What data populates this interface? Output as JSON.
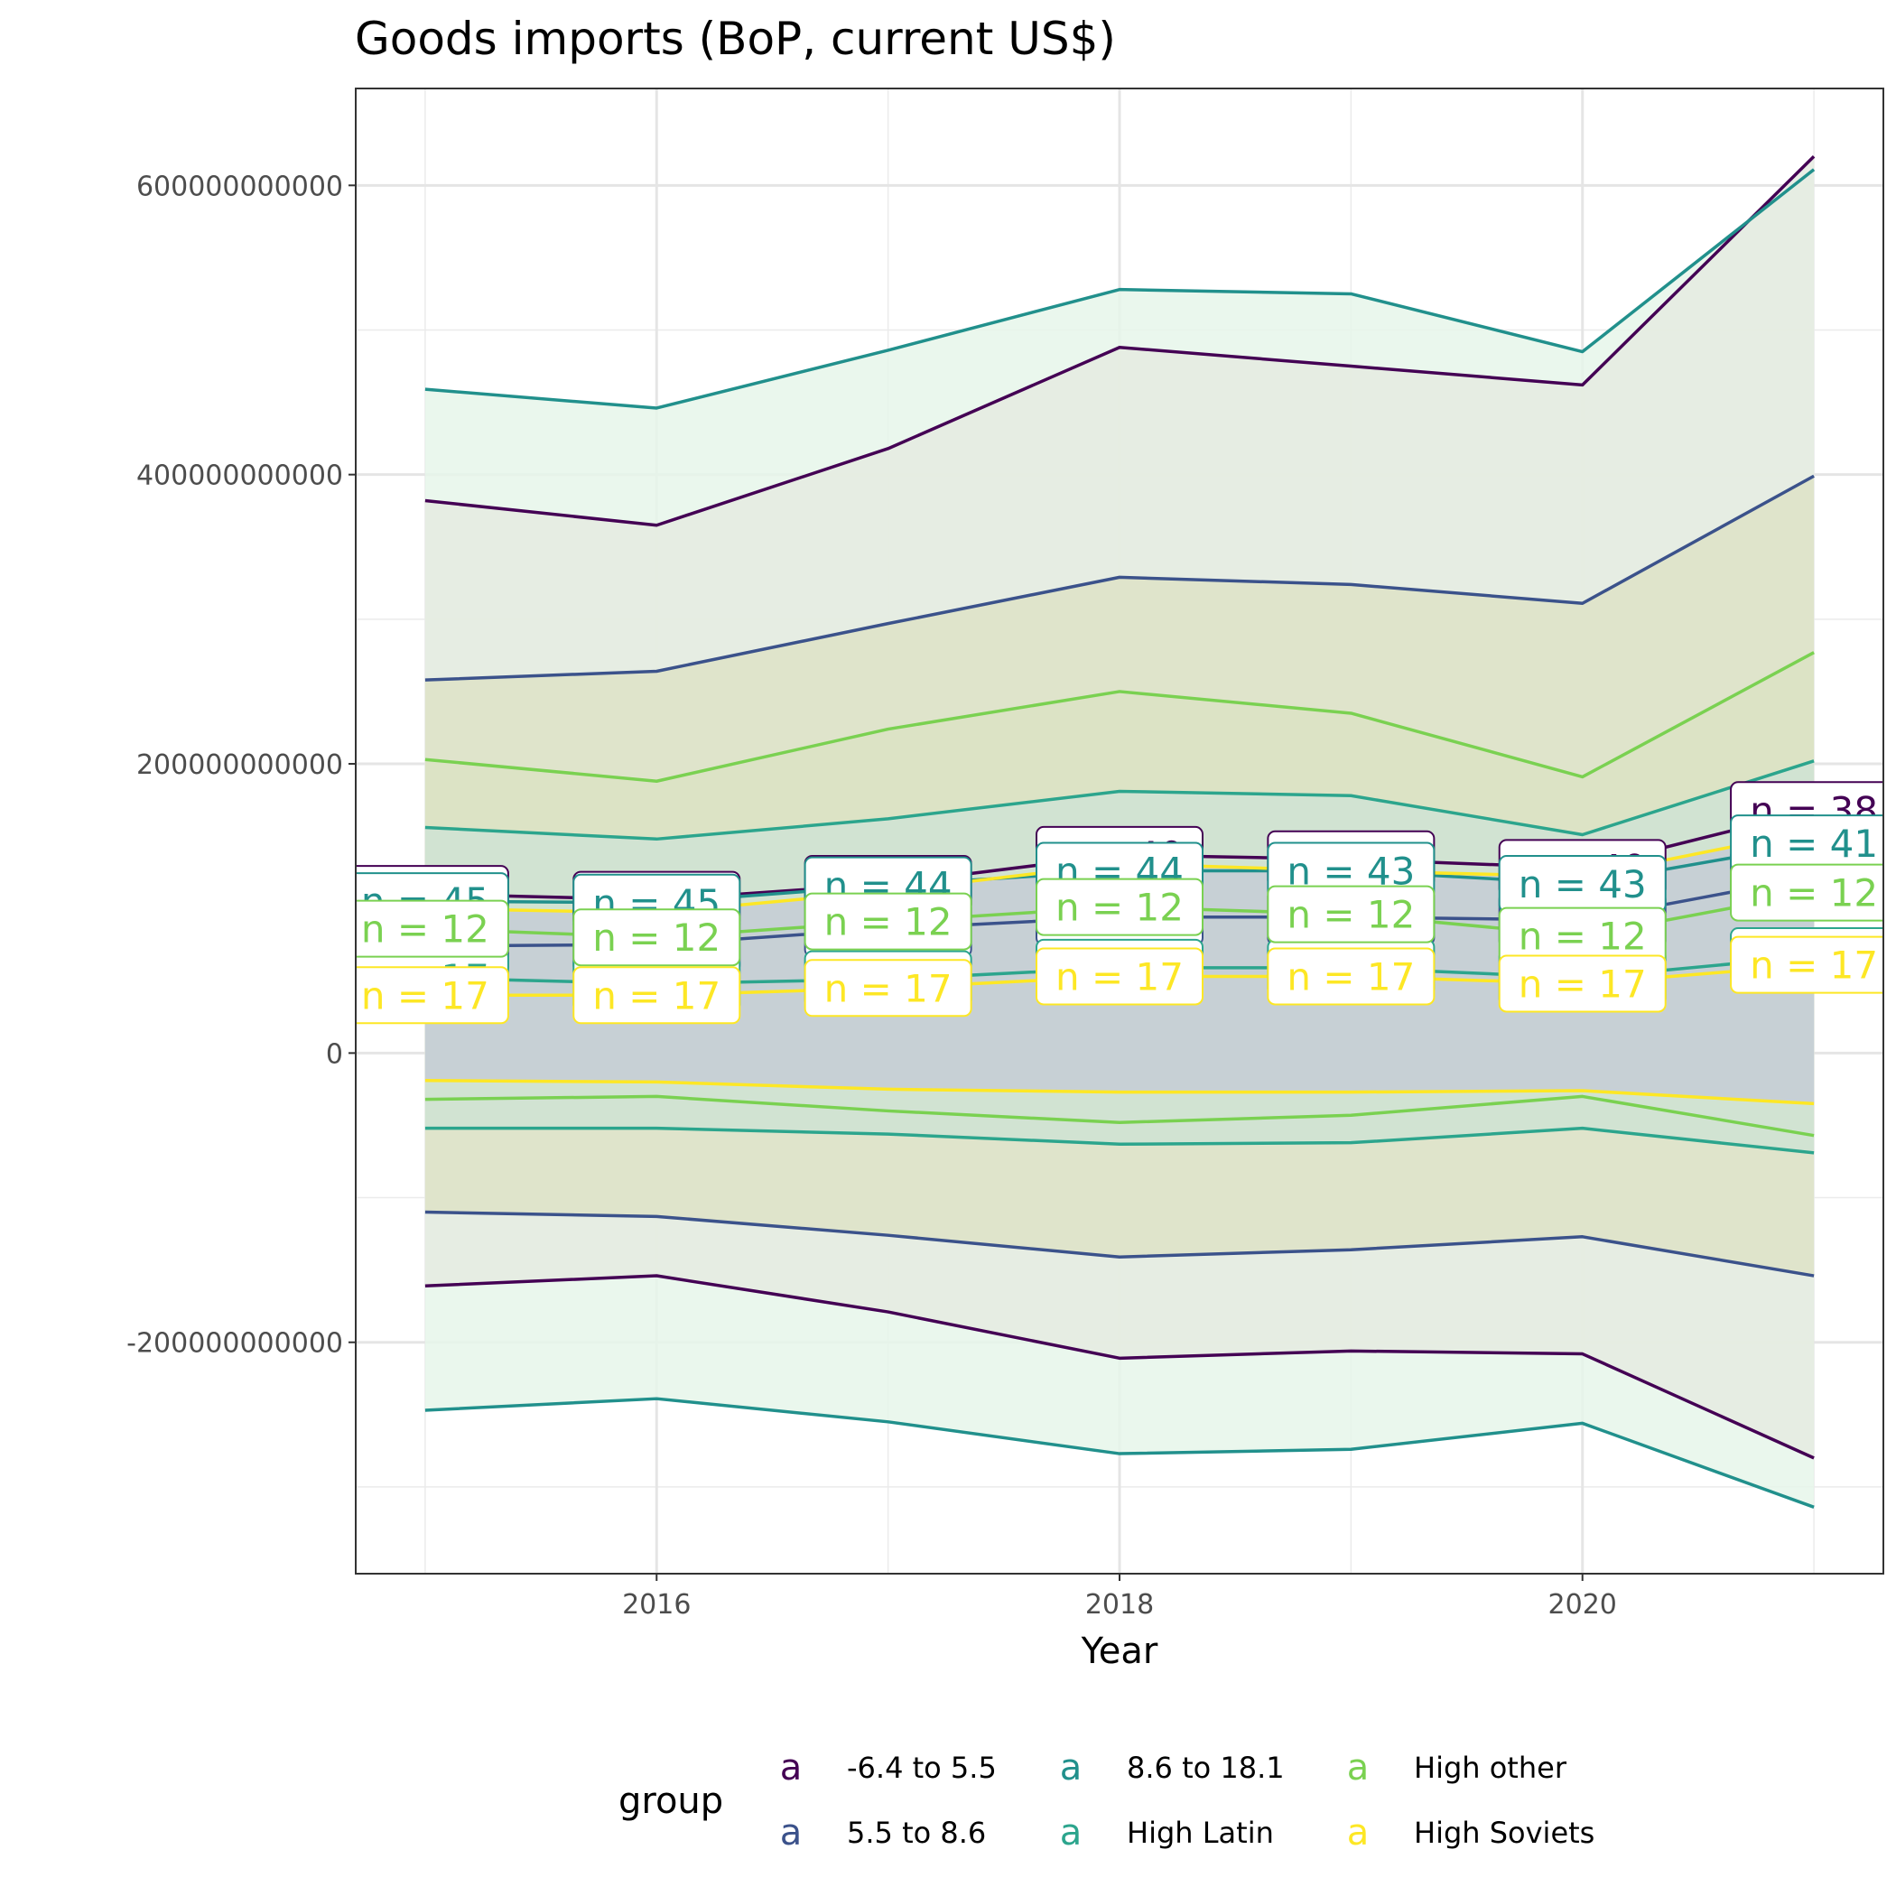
{
  "chart_data": {
    "type": "area",
    "title": "Goods imports (BoP, current US$)",
    "xlabel": "Year",
    "ylabel": "",
    "x": [
      2015,
      2016,
      2017,
      2018,
      2019,
      2020,
      2021
    ],
    "xlim": [
      2014.7,
      2021.3
    ],
    "ylim": [
      -360000000000,
      667000000000
    ],
    "x_ticks": [
      2016,
      2018,
      2020
    ],
    "x_tick_labels": [
      "2016",
      "2018",
      "2020"
    ],
    "y_ticks": [
      -200000000000,
      0,
      200000000000,
      400000000000,
      600000000000
    ],
    "y_tick_labels": [
      "-200000000000",
      "0",
      "200000000000",
      "400000000000",
      "600000000000"
    ],
    "grid": true,
    "legend": {
      "title": "group",
      "position": "bottom",
      "key_glyph": "a"
    },
    "series": [
      {
        "name": "-6.4 to 5.5",
        "color": "#440154",
        "fill": "#e5ebe0",
        "mean": [
          110000000000,
          106000000000,
          117000000000,
          137000000000,
          134000000000,
          128000000000,
          168000000000
        ],
        "upper": [
          382000000000,
          365000000000,
          418000000000,
          488000000000,
          475000000000,
          462000000000,
          620000000000
        ],
        "lower": [
          -161000000000,
          -154000000000,
          -179000000000,
          -211000000000,
          -206000000000,
          -208000000000,
          -280000000000
        ],
        "n_labels": [
          "n = 38",
          "n = 38",
          "n = 38",
          "n = 40",
          "n = 40",
          "n = 40",
          "n = 38"
        ]
      },
      {
        "name": "5.5 to 8.6",
        "color": "#3b528b",
        "fill": "#dde2c7",
        "mean": [
          74000000000,
          75000000000,
          86000000000,
          94000000000,
          94000000000,
          92000000000,
          122000000000
        ],
        "upper": [
          258000000000,
          264000000000,
          297000000000,
          329000000000,
          324000000000,
          311000000000,
          399000000000
        ],
        "lower": [
          -110000000000,
          -113000000000,
          -126000000000,
          -141000000000,
          -136000000000,
          -127000000000,
          -154000000000
        ],
        "n_labels": [
          "n = 45",
          "n = 45",
          "n = 45",
          "n = 45",
          "n = 45",
          "n = 45",
          "n = 41"
        ]
      },
      {
        "name": "8.6 to 18.1",
        "color": "#21908c",
        "fill": "#e6f6ea",
        "mean": [
          105000000000,
          104000000000,
          116000000000,
          126000000000,
          126000000000,
          117000000000,
          145000000000
        ],
        "upper": [
          459000000000,
          446000000000,
          486000000000,
          528000000000,
          525000000000,
          485000000000,
          611000000000
        ],
        "lower": [
          -247000000000,
          -239000000000,
          -255000000000,
          -277000000000,
          -274000000000,
          -256000000000,
          -314000000000
        ],
        "n_labels": [
          "n = 45",
          "n = 45",
          "n = 44",
          "n = 44",
          "n = 43",
          "n = 43",
          "n = 41"
        ]
      },
      {
        "name": "High Latin",
        "color": "#2ca58d",
        "fill": "#cfe3d3",
        "mean": [
          52000000000,
          48000000000,
          51000000000,
          59000000000,
          59000000000,
          52000000000,
          67000000000
        ],
        "upper": [
          156000000000,
          148000000000,
          162000000000,
          181000000000,
          178000000000,
          151000000000,
          202000000000
        ],
        "lower": [
          -52000000000,
          -52000000000,
          -56000000000,
          -63000000000,
          -62000000000,
          -52000000000,
          -69000000000
        ],
        "n_labels": [
          "n = 17",
          "n = 17",
          "n = 17",
          "n = 17",
          "n = 17",
          "n = 17",
          "n = 17"
        ]
      },
      {
        "name": "High other",
        "color": "#7ad151",
        "fill": "#dce3c4",
        "mean": [
          86000000000,
          80000000000,
          91000000000,
          101000000000,
          96000000000,
          81000000000,
          111000000000
        ],
        "upper": [
          203000000000,
          188000000000,
          224000000000,
          250000000000,
          235000000000,
          191000000000,
          277000000000
        ],
        "lower": [
          -32000000000,
          -30000000000,
          -40000000000,
          -48000000000,
          -43000000000,
          -30000000000,
          -57000000000
        ],
        "n_labels": [
          "n = 12",
          "n = 12",
          "n = 12",
          "n = 12",
          "n = 12",
          "n = 12",
          "n = 12"
        ]
      },
      {
        "name": "High Soviets",
        "color": "#fde725",
        "fill": "#c5ccd6",
        "mean": [
          40000000000,
          40000000000,
          45000000000,
          53000000000,
          53000000000,
          48000000000,
          61000000000
        ],
        "upper": [
          100000000000,
          97000000000,
          112000000000,
          131000000000,
          126000000000,
          122000000000,
          154000000000
        ],
        "lower": [
          -19000000000,
          -20000000000,
          -25000000000,
          -27000000000,
          -27000000000,
          -26000000000,
          -35000000000
        ],
        "n_labels": [
          "n = 17",
          "n = 17",
          "n = 17",
          "n = 17",
          "n = 17",
          "n = 17",
          "n = 17"
        ]
      }
    ]
  }
}
